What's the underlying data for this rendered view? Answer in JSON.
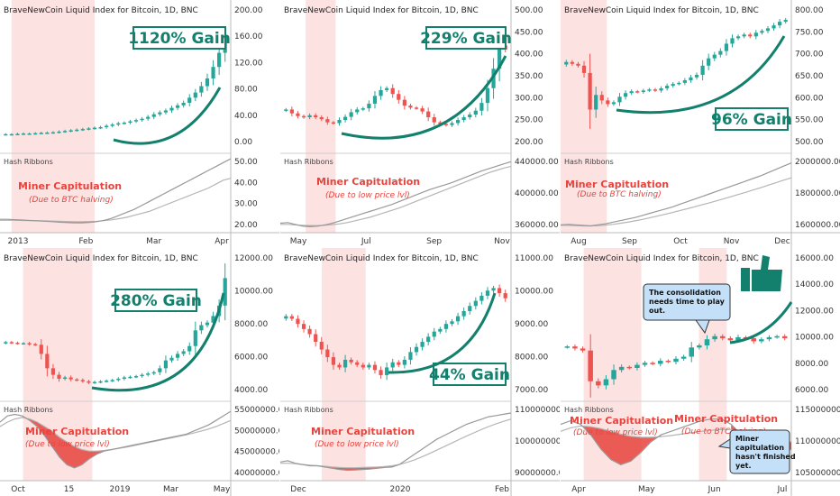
{
  "colors": {
    "up": "#26a69a",
    "down": "#ef5350",
    "shade": "#fde2e2",
    "gain": "#12806d",
    "capitulation": "#e8433d",
    "ribbon_fast": "#999999",
    "ribbon_slow": "#b5b5b5",
    "callout_bg": "#c4e0f8",
    "callout_border": "#333333"
  },
  "icons": [
    "thumbs-up-icon"
  ],
  "chart_data": [
    {
      "type": "line",
      "title": "BraveNewCoin Liquid Index for Bitcoin, 1D, BNC",
      "subtitle": "Hash Ribbons",
      "gain_label": "1120% Gain",
      "capitulation_label": "Miner Capitulation",
      "capitulation_note": "(Due to BTC halving)",
      "x_ticks": [
        "2013",
        "Feb",
        "Mar",
        "Apr"
      ],
      "price_ticks": [
        "200.00",
        "160.00",
        "120.00",
        "80.00",
        "40.00",
        "0.00"
      ],
      "price_ylim": [
        0,
        200
      ],
      "price": [
        13,
        13,
        13.5,
        14,
        14,
        14.5,
        15,
        15.5,
        16,
        17,
        18,
        19,
        20,
        21,
        22,
        23,
        24,
        26,
        28,
        30,
        31,
        33,
        35,
        37,
        40,
        44,
        47,
        50,
        54,
        58,
        62,
        70,
        78,
        88,
        100,
        118,
        140,
        165
      ],
      "hash_ticks": [
        "50.00",
        "40.00",
        "30.00",
        "20.00"
      ],
      "hash_ylim": [
        17,
        53
      ],
      "ribbon_fast": [
        22,
        22,
        21.8,
        21.6,
        21.4,
        21.2,
        21,
        20.8,
        20.5,
        20.3,
        20.2,
        20.2,
        20.4,
        20.8,
        21.5,
        22.5,
        24,
        25.5,
        27,
        29,
        31,
        33,
        35,
        37,
        39,
        41,
        43,
        45,
        47,
        49,
        51,
        53
      ],
      "ribbon_slow": [
        21.5,
        21.5,
        21.5,
        21.4,
        21.3,
        21.3,
        21.2,
        21.1,
        21,
        20.9,
        20.8,
        20.8,
        20.9,
        21,
        21.3,
        21.7,
        22.3,
        23,
        24,
        25,
        26,
        27.5,
        29,
        30.5,
        32,
        33.5,
        35,
        36.5,
        38,
        40,
        42,
        43
      ],
      "shade_x": [
        0.05,
        0.41
      ]
    },
    {
      "type": "line",
      "title": "BraveNewCoin Liquid Index for Bitcoin, 1D, BNC",
      "subtitle": "Hash Ribbons",
      "gain_label": "229% Gain",
      "capitulation_label": "Miner Capitulation",
      "capitulation_note": "(Due to low price lvl)",
      "x_ticks": [
        "May",
        "Jul",
        "Sep",
        "Nov"
      ],
      "price_ticks": [
        "500.00",
        "450.00",
        "400.00",
        "350.00",
        "300.00",
        "250.00",
        "200.00"
      ],
      "price_ylim": [
        180,
        510
      ],
      "price": [
        265,
        255,
        248,
        245,
        250,
        245,
        240,
        232,
        230,
        238,
        246,
        258,
        265,
        268,
        280,
        300,
        315,
        320,
        305,
        290,
        275,
        270,
        268,
        260,
        245,
        232,
        228,
        225,
        230,
        238,
        245,
        252,
        262,
        282,
        320,
        370,
        430,
        420
      ],
      "hash_ticks": [
        "440000.00",
        "400000.00",
        "360000.00"
      ],
      "hash_ylim": [
        335000,
        455000
      ],
      "ribbon_fast": [
        345000,
        346000,
        343000,
        340000,
        339000,
        340000,
        342000,
        345000,
        349000,
        353000,
        357000,
        361000,
        365000,
        369000,
        373000,
        377000,
        382000,
        387000,
        392000,
        397000,
        402000,
        406000,
        410000,
        414000,
        419000,
        424000,
        429000,
        434000,
        438000,
        442000,
        446000,
        450000
      ],
      "ribbon_slow": [
        343000,
        343000,
        342000,
        341500,
        341000,
        341000,
        341500,
        342500,
        344000,
        346000,
        349000,
        352000,
        355000,
        359000,
        363000,
        367000,
        371000,
        376000,
        381000,
        386000,
        391000,
        396000,
        401000,
        406000,
        411000,
        416000,
        421000,
        426000,
        431000,
        435000,
        439000,
        442000
      ],
      "shade_x": [
        0.11,
        0.24
      ]
    },
    {
      "type": "line",
      "title": "BraveNewCoin Liquid Index for Bitcoin, 1D, BNC",
      "subtitle": "Hash Ribbons",
      "gain_label": "96% Gain",
      "capitulation_label": "Miner Capitulation",
      "capitulation_note": "(Due to BTC halving)",
      "x_ticks": [
        "Aug",
        "Sep",
        "Oct",
        "Nov",
        "Dec"
      ],
      "price_ticks": [
        "800.00",
        "750.00",
        "700.00",
        "650.00",
        "600.00",
        "550.00",
        "500.00"
      ],
      "price_ylim": [
        470,
        820
      ],
      "price": [
        690,
        685,
        680,
        660,
        560,
        600,
        585,
        575,
        580,
        595,
        605,
        610,
        608,
        612,
        615,
        612,
        618,
        625,
        630,
        633,
        640,
        648,
        655,
        680,
        700,
        710,
        720,
        740,
        755,
        760,
        765,
        760,
        770,
        775,
        782,
        790,
        800,
        805
      ],
      "hash_ticks": [
        "2000000.00",
        "1800000.00",
        "1600000.00"
      ],
      "hash_ylim": [
        1480000,
        2150000
      ],
      "ribbon_fast": [
        1520000,
        1525000,
        1520000,
        1515000,
        1510000,
        1520000,
        1530000,
        1545000,
        1560000,
        1575000,
        1590000,
        1610000,
        1630000,
        1650000,
        1670000,
        1690000,
        1715000,
        1740000,
        1765000,
        1790000,
        1815000,
        1840000,
        1865000,
        1890000,
        1915000,
        1940000,
        1965000,
        1990000,
        2020000,
        2050000,
        2080000,
        2110000
      ],
      "ribbon_slow": [
        1515000,
        1515000,
        1512000,
        1510000,
        1510000,
        1512000,
        1518000,
        1525000,
        1535000,
        1545000,
        1558000,
        1572000,
        1588000,
        1604000,
        1620000,
        1637000,
        1655000,
        1673000,
        1692000,
        1711000,
        1730000,
        1750000,
        1770000,
        1791000,
        1812000,
        1833000,
        1855000,
        1877000,
        1900000,
        1923000,
        1946000,
        1968000
      ],
      "shade_x": [
        0.0,
        0.2
      ]
    },
    {
      "type": "line",
      "title": "BraveNewCoin Liquid Index for Bitcoin, 1D, BNC",
      "subtitle": "Hash Ribbons",
      "gain_label": "280% Gain",
      "capitulation_label": "Miner Capitulation",
      "capitulation_note": "(Due to low price lvl)",
      "x_ticks": [
        "Oct",
        "15",
        "2019",
        "Mar",
        "May"
      ],
      "price_ticks": [
        "12000.00",
        "10000.00",
        "8000.00",
        "6000.00",
        "4000.00"
      ],
      "price_ylim": [
        2800,
        12600
      ],
      "price": [
        6500,
        6450,
        6400,
        6420,
        6350,
        6300,
        5600,
        4500,
        4000,
        3700,
        3800,
        3650,
        3600,
        3500,
        3400,
        3450,
        3500,
        3550,
        3600,
        3700,
        3800,
        3850,
        3900,
        4000,
        4100,
        4200,
        4500,
        5100,
        5300,
        5600,
        5800,
        6200,
        7400,
        7800,
        8000,
        8500,
        9300,
        11400
      ],
      "hash_ticks": [
        "55000000.00",
        "50000000.00",
        "45000000.00",
        "40000000.00"
      ],
      "hash_ylim": [
        34000000,
        57000000
      ],
      "ribbon_fast": [
        52000000,
        54000000,
        54500000,
        54000000,
        52500000,
        50500000,
        47500000,
        44000000,
        40500000,
        38000000,
        37000000,
        38000000,
        40000000,
        41500000,
        42500000,
        43000000,
        43500000,
        44000000,
        44500000,
        45000000,
        45500000,
        46000000,
        46500000,
        47000000,
        47500000,
        48000000,
        49000000,
        50000000,
        51000000,
        52500000,
        54000000,
        55500000
      ],
      "ribbon_slow": [
        50500000,
        52000000,
        53000000,
        53500000,
        53000000,
        52000000,
        50500000,
        49000000,
        47000000,
        45500000,
        44000000,
        43000000,
        42500000,
        42500000,
        42700000,
        43000000,
        43400000,
        43800000,
        44300000,
        44800000,
        45300000,
        45800000,
        46300000,
        46800000,
        47300000,
        47800000,
        48400000,
        49000000,
        49700000,
        50500000,
        51500000,
        52500000
      ],
      "shade_x": [
        0.1,
        0.4
      ]
    },
    {
      "type": "line",
      "title": "BraveNewCoin Liquid Index for Bitcoin, 1D, BNC",
      "subtitle": "Hash Ribbons",
      "gain_label": "44% Gain",
      "capitulation_label": "Miner Capitulation",
      "capitulation_note": "(Due to low price lvl)",
      "x_ticks": [
        "Dec",
        "2020",
        "Feb"
      ],
      "price_ticks": [
        "11000.00",
        "10000.00",
        "9000.00",
        "8000.00",
        "7000.00"
      ],
      "price_ylim": [
        6300,
        11300
      ],
      "price": [
        9200,
        9100,
        8900,
        8700,
        8500,
        8200,
        7900,
        7600,
        7300,
        7200,
        7500,
        7400,
        7300,
        7200,
        7300,
        7100,
        6900,
        7200,
        7400,
        7300,
        7500,
        7800,
        8000,
        8200,
        8400,
        8600,
        8700,
        8900,
        9000,
        9200,
        9400,
        9600,
        9800,
        10000,
        10200,
        10300,
        10100,
        9900
      ],
      "hash_ticks": [
        "110000000.00",
        "100000000.00",
        "90000000.00"
      ],
      "hash_ylim": [
        86000000,
        114000000
      ],
      "ribbon_fast": [
        92000000,
        92500000,
        91500000,
        91000000,
        90500000,
        90500000,
        90000000,
        89500000,
        89000000,
        88700000,
        88800000,
        89000000,
        89200000,
        89500000,
        89800000,
        90000000,
        91000000,
        93000000,
        95000000,
        97000000,
        99000000,
        101000000,
        102500000,
        104000000,
        105500000,
        107000000,
        108000000,
        109000000,
        110000000,
        110500000,
        111000000,
        111500000
      ],
      "ribbon_slow": [
        91500000,
        91500000,
        91300000,
        91000000,
        90700000,
        90500000,
        90300000,
        90000000,
        89800000,
        89700000,
        89700000,
        89800000,
        89900000,
        90000000,
        90200000,
        90500000,
        91000000,
        91800000,
        92800000,
        94000000,
        95300000,
        96700000,
        98100000,
        99500000,
        100900000,
        102300000,
        103600000,
        104900000,
        106100000,
        107200000,
        108200000,
        109100000
      ],
      "shade_x": [
        0.18,
        0.37
      ]
    },
    {
      "type": "line",
      "title": "BraveNewCoin Liquid Index for Bitcoin, 1D, BNC",
      "subtitle": "Hash Ribbons",
      "capitulation_label": "Miner Capitulation",
      "capitulation_note": "(Due to low price lvl)",
      "capitulation_label_2": "Miner Capitulation",
      "capitulation_note_2": "(Due to BTC halving)",
      "note_1": [
        "The consolidation",
        "needs time to play",
        "out."
      ],
      "note_2": [
        "Miner",
        "capitulation",
        "hasn't finished",
        "yet."
      ],
      "x_ticks": [
        "Apr",
        "May",
        "Jun",
        "Jul"
      ],
      "price_ticks": [
        "16000.00",
        "14000.00",
        "12000.00",
        "10000.00",
        "8000.00",
        "6000.00"
      ],
      "price_ylim": [
        4500,
        17000
      ],
      "price": [
        8800,
        8600,
        8400,
        5400,
        5000,
        5600,
        6500,
        6800,
        6700,
        7000,
        7200,
        7100,
        7400,
        7300,
        7600,
        7800,
        8700,
        8900,
        9500,
        9800,
        9600,
        9400,
        9700,
        9600,
        9300,
        9500,
        9700,
        9800,
        9600
      ],
      "hash_ticks": [
        "115000000.00",
        "110000000.00",
        "105000000.00"
      ],
      "hash_ylim": [
        98000000,
        118000000
      ],
      "ribbon_fast": [
        113000000,
        114000000,
        113000000,
        110000000,
        106000000,
        103000000,
        101500000,
        102500000,
        105000000,
        108000000,
        110000000,
        111000000,
        112000000,
        113000000,
        114000000,
        114500000,
        114500000,
        113000000,
        110000000,
        106000000,
        104000000,
        103500000,
        104000000,
        106000000
      ],
      "ribbon_slow": [
        111000000,
        112000000,
        112500000,
        112300000,
        111800000,
        111000000,
        110200000,
        109600000,
        109300000,
        109300000,
        109500000,
        109800000,
        110200000,
        110600000,
        111000000,
        111300000,
        111500000,
        111400000,
        111000000,
        110300000,
        109500000,
        108800000,
        108300000,
        108000000
      ],
      "shade_x": [
        0.1,
        0.35,
        0.6,
        0.72
      ]
    }
  ]
}
